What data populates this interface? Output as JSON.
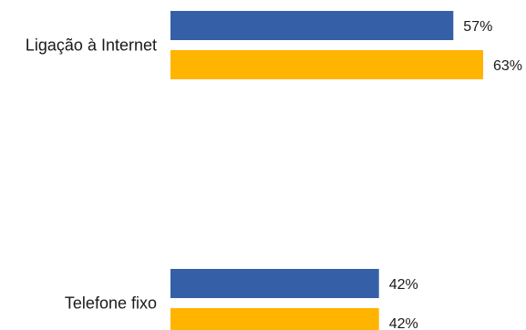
{
  "chart_data": {
    "type": "bar",
    "orientation": "horizontal",
    "categories": [
      "Ligação à Internet",
      "Telefone fixo"
    ],
    "series": [
      {
        "values": [
          57,
          42
        ],
        "color": "#3560a8"
      },
      {
        "values": [
          63,
          42
        ],
        "color": "#ffb400"
      }
    ],
    "value_labels": [
      [
        "57%",
        "42%"
      ],
      [
        "63%",
        "42%"
      ]
    ],
    "xlim": [
      0,
      63
    ],
    "grid": false,
    "legend": "none"
  }
}
